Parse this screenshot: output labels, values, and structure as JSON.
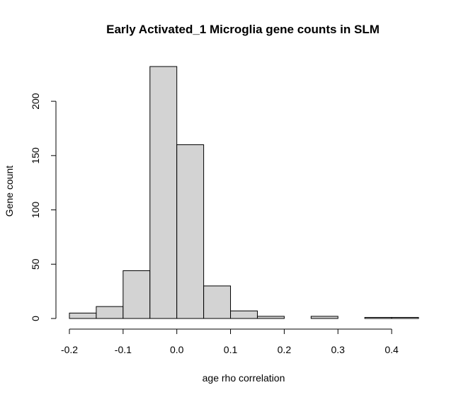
{
  "chart_data": {
    "type": "bar",
    "title": "Early Activated_1 Microglia gene counts in SLM",
    "xlabel": "age rho correlation",
    "ylabel": "Gene count",
    "bin_edges": [
      -0.2,
      -0.15,
      -0.1,
      -0.05,
      0.0,
      0.05,
      0.1,
      0.15,
      0.2,
      0.25,
      0.3,
      0.35,
      0.4,
      0.45
    ],
    "values": [
      5,
      11,
      44,
      232,
      160,
      30,
      7,
      2,
      0,
      2,
      0,
      1,
      1
    ],
    "xlim": [
      -0.2,
      0.45
    ],
    "ylim": [
      0,
      232
    ],
    "x_ticks": [
      -0.2,
      -0.1,
      0.0,
      0.1,
      0.2,
      0.3,
      0.4
    ],
    "x_tick_labels": [
      "-0.2",
      "-0.1",
      "0.0",
      "0.1",
      "0.2",
      "0.3",
      "0.4"
    ],
    "y_ticks": [
      0,
      50,
      100,
      150,
      200
    ],
    "y_tick_labels": [
      "0",
      "50",
      "100",
      "150",
      "200"
    ],
    "bar_fill": "#d3d3d3",
    "bar_stroke": "#000000",
    "grid": false,
    "legend": "none"
  }
}
